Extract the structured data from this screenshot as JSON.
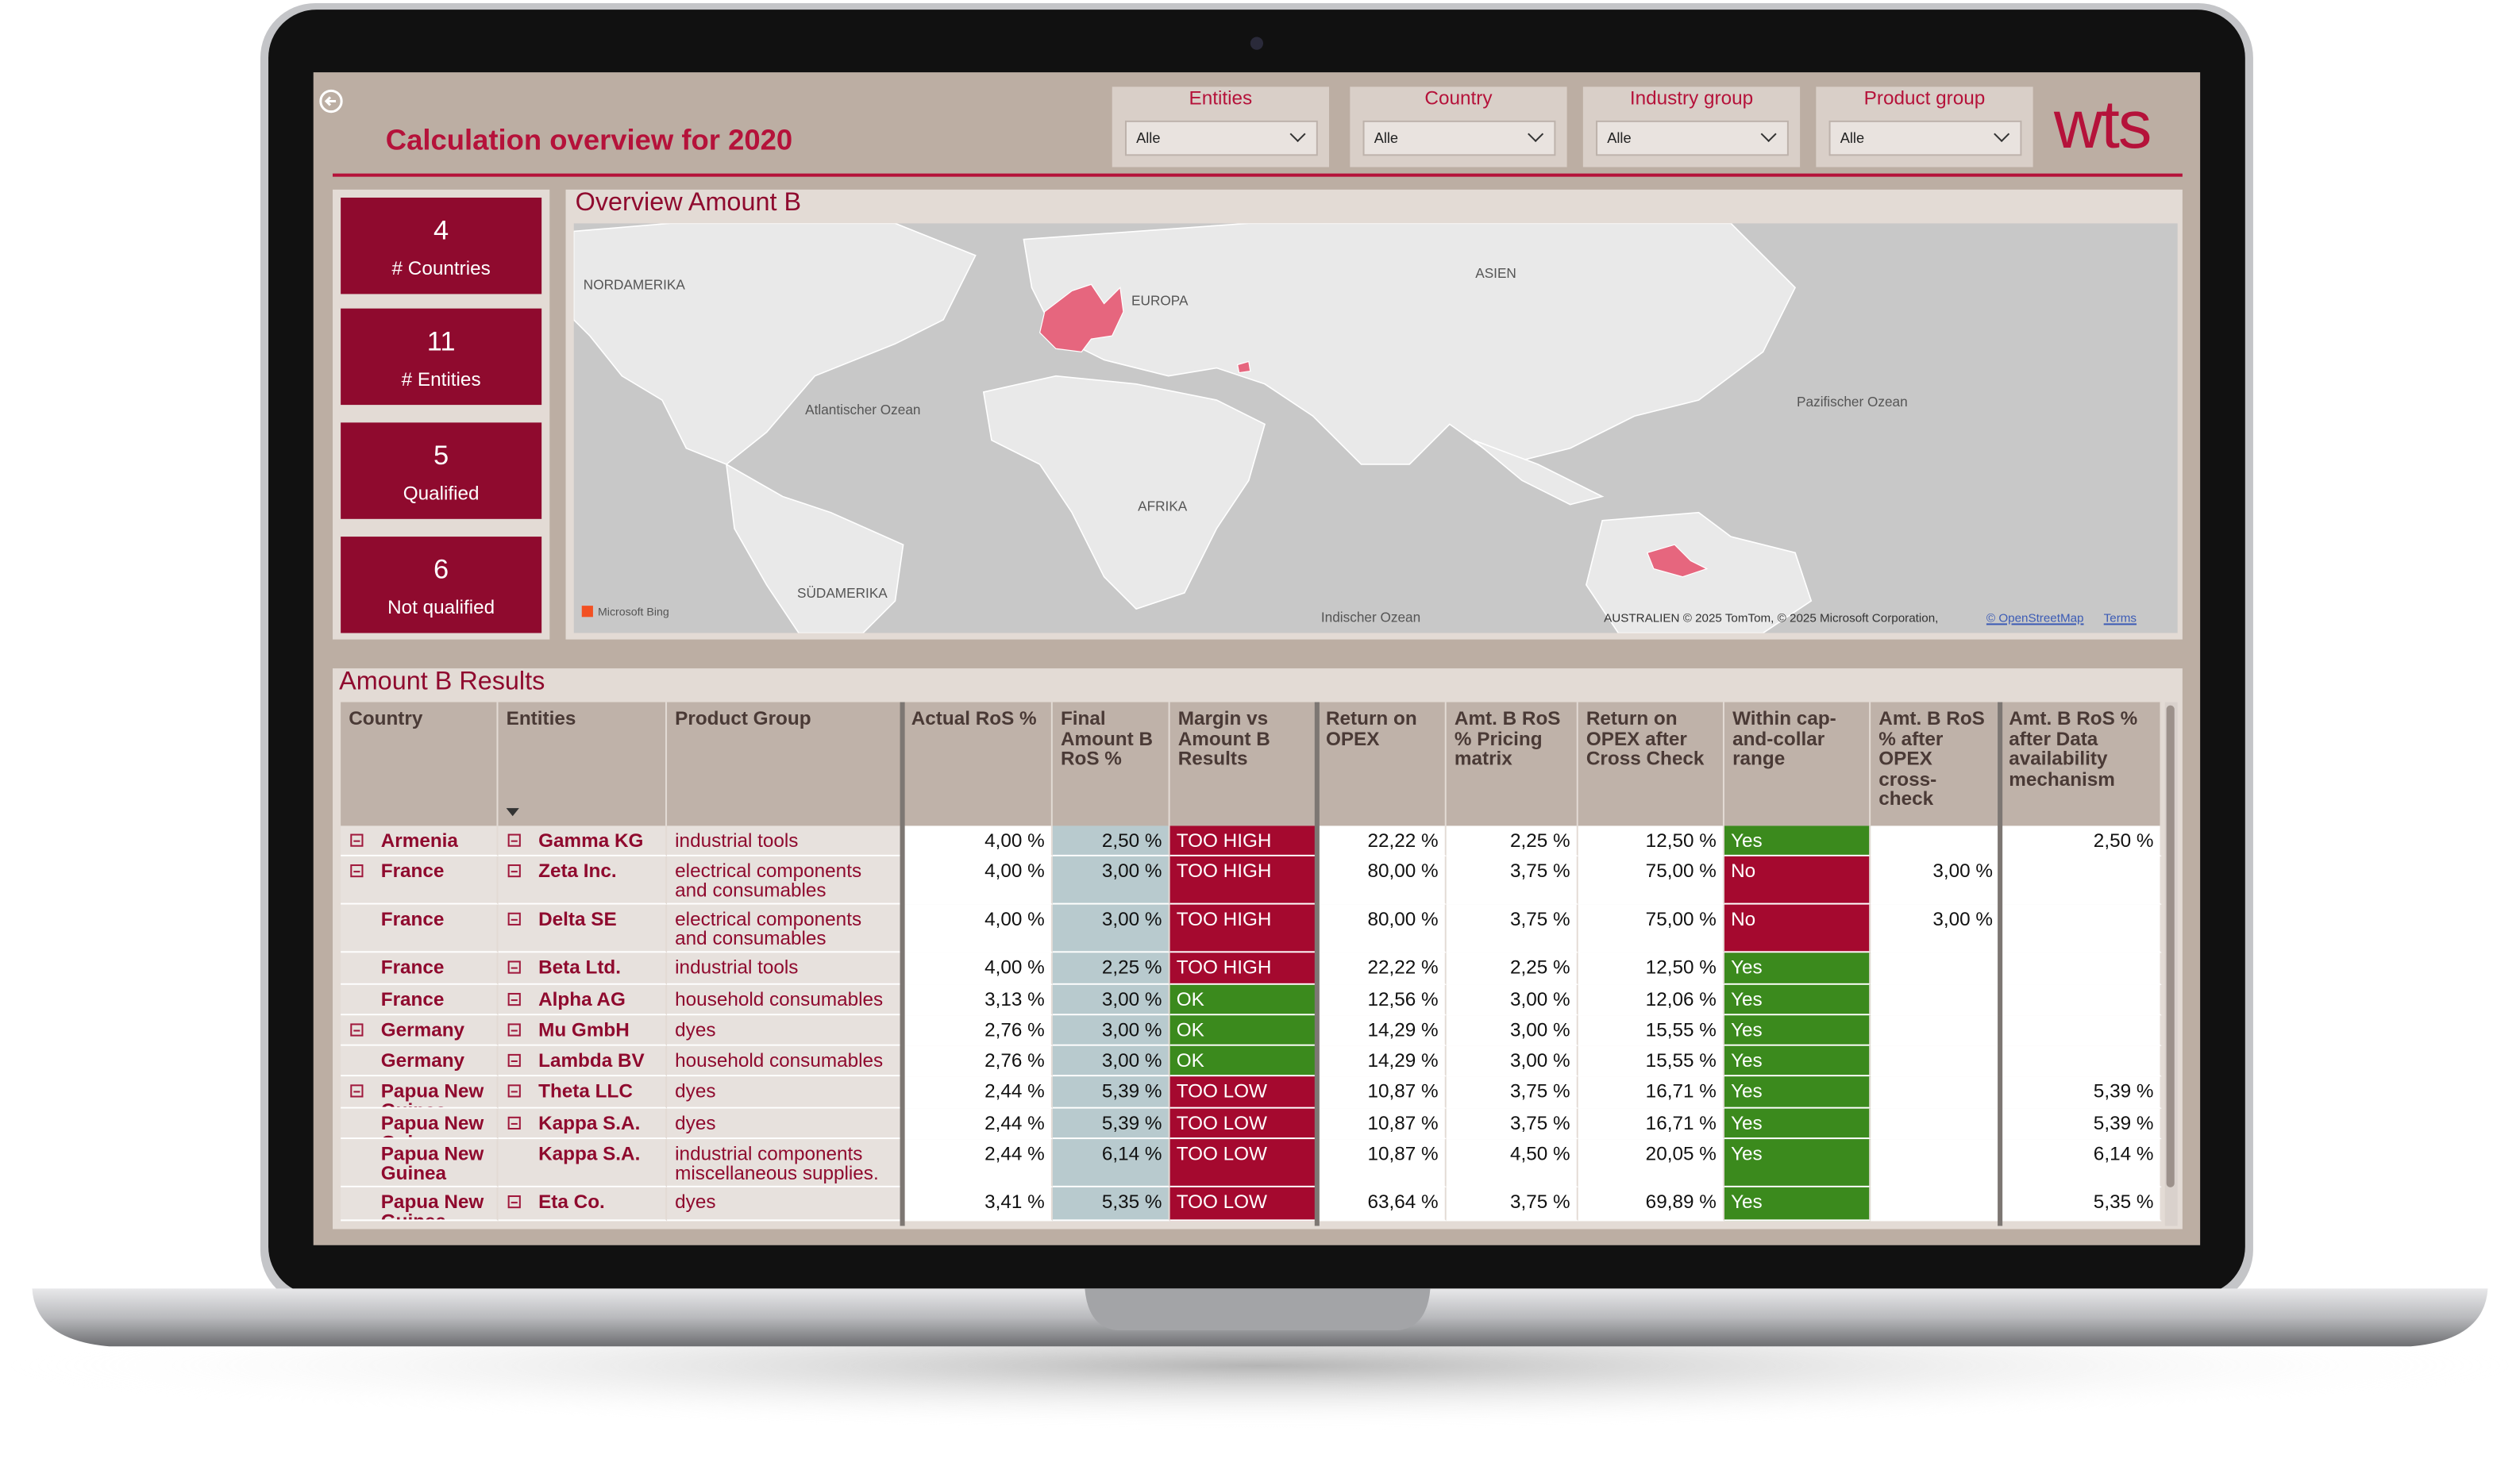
{
  "header": {
    "title": "Calculation overview for 2020",
    "logo": "wts"
  },
  "filters": [
    {
      "label": "Entities",
      "value": "Alle"
    },
    {
      "label": "Country",
      "value": "Alle"
    },
    {
      "label": "Industry group",
      "value": "Alle"
    },
    {
      "label": "Product group",
      "value": "Alle"
    }
  ],
  "kpis": [
    {
      "value": 4,
      "label": "# Countries"
    },
    {
      "value": 11,
      "label": "# Entities"
    },
    {
      "value": 5,
      "label": "Qualified"
    },
    {
      "value": 6,
      "label": "Not qualified"
    }
  ],
  "map": {
    "title": "Overview Amount B",
    "labels": [
      "NORDAMERIKA",
      "EUROPA",
      "ASIEN",
      "Atlantischer Ozean",
      "Pazifischer Ozean",
      "AFRIKA",
      "SÜDAMERIKA",
      "Indischer Ozean"
    ],
    "brand": "Microsoft Bing",
    "attribution": "AUSTRALIEN © 2025 TomTom, © 2025 Microsoft Corporation,",
    "links": [
      "© OpenStreetMap",
      "Terms"
    ]
  },
  "table": {
    "title": "Amount B Results",
    "columns": [
      "Country",
      "Entities",
      "Product Group",
      "Actual RoS %",
      "Final Amount B RoS %",
      "Margin vs Amount B Results",
      "Return on OPEX",
      "Amt. B RoS % Pricing matrix",
      "Return on OPEX after Cross Check",
      "Within cap-and-collar range",
      "Amt. B RoS % after OPEX cross-check",
      "Amt. B RoS % after Data availability mechanism"
    ],
    "rows": [
      {
        "country_toggle": true,
        "entity_toggle": true,
        "margin_color": "#a5092f",
        "range_color": "#3b8a1d",
        "cells": [
          "Armenia",
          "Gamma KG",
          "industrial tools",
          "4,00 %",
          "2,50 %",
          "TOO HIGH",
          "22,22 %",
          "2,25 %",
          "12,50 %",
          "Yes",
          null,
          "2,50 %"
        ]
      },
      {
        "country_toggle": true,
        "entity_toggle": true,
        "margin_color": "#a5092f",
        "range_color": "#a5092f",
        "cells": [
          "France",
          "Zeta Inc.",
          "electrical components and consumables",
          "4,00 %",
          "3,00 %",
          "TOO HIGH",
          "80,00 %",
          "3,75 %",
          "75,00 %",
          "No",
          "3,00 %",
          null
        ]
      },
      {
        "country_toggle": false,
        "entity_toggle": true,
        "margin_color": "#a5092f",
        "range_color": "#a5092f",
        "cells": [
          "France",
          "Delta SE",
          "electrical components and consumables",
          "4,00 %",
          "3,00 %",
          "TOO HIGH",
          "80,00 %",
          "3,75 %",
          "75,00 %",
          "No",
          "3,00 %",
          null
        ]
      },
      {
        "country_toggle": false,
        "entity_toggle": true,
        "margin_color": "#a5092f",
        "range_color": "#3b8a1d",
        "cells": [
          "France",
          "Beta Ltd.",
          "industrial tools",
          "4,00 %",
          "2,25 %",
          "TOO HIGH",
          "22,22 %",
          "2,25 %",
          "12,50 %",
          "Yes",
          null,
          null
        ]
      },
      {
        "country_toggle": false,
        "entity_toggle": true,
        "margin_color": "#3b8a1d",
        "range_color": "#3b8a1d",
        "cells": [
          "France",
          "Alpha AG",
          "household consumables",
          "3,13 %",
          "3,00 %",
          "OK",
          "12,56 %",
          "3,00 %",
          "12,06 %",
          "Yes",
          null,
          null
        ]
      },
      {
        "country_toggle": true,
        "entity_toggle": true,
        "margin_color": "#3b8a1d",
        "range_color": "#3b8a1d",
        "cells": [
          "Germany",
          "Mu GmbH",
          "dyes",
          "2,76 %",
          "3,00 %",
          "OK",
          "14,29 %",
          "3,00 %",
          "15,55 %",
          "Yes",
          null,
          null
        ]
      },
      {
        "country_toggle": false,
        "entity_toggle": true,
        "margin_color": "#3b8a1d",
        "range_color": "#3b8a1d",
        "cells": [
          "Germany",
          "Lambda BV",
          "household consumables",
          "2,76 %",
          "3,00 %",
          "OK",
          "14,29 %",
          "3,00 %",
          "15,55 %",
          "Yes",
          null,
          null
        ]
      },
      {
        "country_toggle": true,
        "entity_toggle": true,
        "margin_color": "#a5092f",
        "range_color": "#3b8a1d",
        "cells": [
          "Papua New Guinea",
          "Theta LLC",
          "dyes",
          "2,44 %",
          "5,39 %",
          "TOO LOW",
          "10,87 %",
          "3,75 %",
          "16,71 %",
          "Yes",
          null,
          "5,39 %"
        ]
      },
      {
        "country_toggle": false,
        "entity_toggle": true,
        "margin_color": "#a5092f",
        "range_color": "#3b8a1d",
        "cells": [
          "Papua New Guinea",
          "Kappa S.A.",
          "dyes",
          "2,44 %",
          "5,39 %",
          "TOO LOW",
          "10,87 %",
          "3,75 %",
          "16,71 %",
          "Yes",
          null,
          "5,39 %"
        ]
      },
      {
        "country_toggle": false,
        "entity_toggle": false,
        "margin_color": "#a5092f",
        "range_color": "#3b8a1d",
        "cells": [
          "Papua New Guinea",
          "Kappa S.A.",
          "industrial components miscellaneous supplies.",
          "2,44 %",
          "6,14 %",
          "TOO LOW",
          "10,87 %",
          "4,50 %",
          "20,05 %",
          "Yes",
          null,
          "6,14 %"
        ]
      },
      {
        "country_toggle": false,
        "entity_toggle": true,
        "margin_color": "#a5092f",
        "range_color": "#3b8a1d",
        "cells": [
          "Papua New Guinea",
          "Eta Co.",
          "dyes",
          "3,41 %",
          "5,35 %",
          "TOO LOW",
          "63,64 %",
          "3,75 %",
          "69,89 %",
          "Yes",
          null,
          "5,35 %"
        ]
      }
    ]
  }
}
